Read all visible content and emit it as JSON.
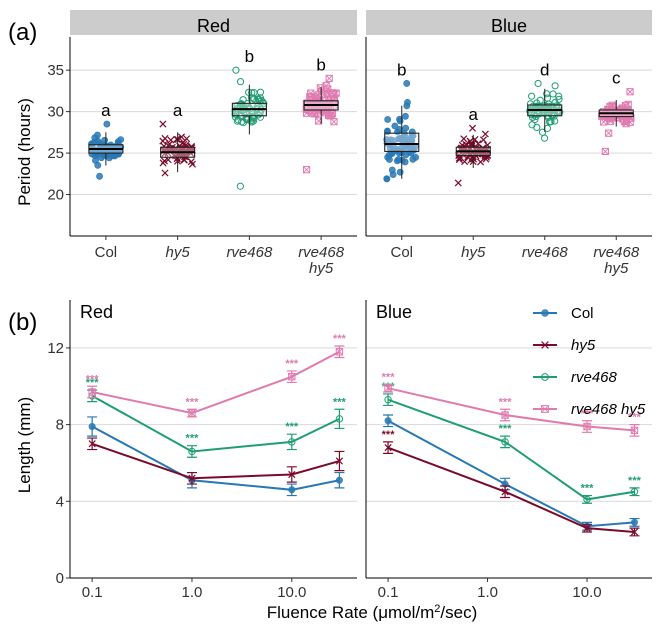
{
  "chart_data": [
    {
      "panel_label": "(a)",
      "type": "box",
      "ylabel": "Period (hours)",
      "ylim": [
        15,
        39
      ],
      "yticks": [
        20,
        25,
        30,
        35
      ],
      "grid": true,
      "categories": [
        "Col",
        "hy5",
        "rve468",
        "rve468 hy5"
      ],
      "category_lines": [
        [
          "Col"
        ],
        [
          "hy5"
        ],
        [
          "rve468"
        ],
        [
          "rve468",
          "hy5"
        ]
      ],
      "category_italic": [
        false,
        true,
        true,
        true
      ],
      "colors": {
        "Col": "#2878b5",
        "hy5": "#7b0a2a",
        "rve468": "#1f9e74",
        "rve468 hy5": "#e07aaf"
      },
      "facets": [
        {
          "strip": "Red",
          "groups": [
            {
              "category": "Col",
              "q1": 25.0,
              "median": 25.5,
              "q3": 26.0,
              "min": 22.2,
              "max": 28.5,
              "letter": "a"
            },
            {
              "category": "hy5",
              "q1": 24.5,
              "median": 25.1,
              "q3": 25.7,
              "min": 22.6,
              "max": 28.5,
              "letter": "a"
            },
            {
              "category": "rve468",
              "q1": 29.5,
              "median": 30.3,
              "q3": 31.0,
              "min": 21.0,
              "max": 35.0,
              "letter": "b"
            },
            {
              "category": "rve468 hy5",
              "q1": 30.2,
              "median": 30.8,
              "q3": 31.3,
              "min": 23.0,
              "max": 34.0,
              "letter": "b"
            }
          ]
        },
        {
          "strip": "Blue",
          "groups": [
            {
              "category": "Col",
              "q1": 25.2,
              "median": 26.1,
              "q3": 27.4,
              "min": 21.9,
              "max": 33.4,
              "letter": "b"
            },
            {
              "category": "hy5",
              "q1": 24.7,
              "median": 25.2,
              "q3": 25.7,
              "min": 21.4,
              "max": 28.0,
              "letter": "a"
            },
            {
              "category": "rve468",
              "q1": 29.5,
              "median": 30.2,
              "q3": 30.8,
              "min": 26.8,
              "max": 33.4,
              "letter": "d"
            },
            {
              "category": "rve468 hy5",
              "q1": 29.4,
              "median": 29.8,
              "q3": 30.2,
              "min": 25.2,
              "max": 32.4,
              "letter": "c"
            }
          ]
        }
      ]
    },
    {
      "panel_label": "(b)",
      "type": "line",
      "xlabel": "Fluence Rate (μmol/m",
      "xlabel_sup": "2",
      "xlabel_tail": "/sec)",
      "ylabel": "Length (mm)",
      "xscale": "log",
      "xlim": [
        0.06,
        45
      ],
      "ylim": [
        0,
        14.5
      ],
      "xticks": [
        0.1,
        1.0,
        10.0
      ],
      "xtick_labels": [
        "0.1",
        "1.0",
        "10.0"
      ],
      "yticks": [
        0,
        4,
        8,
        12
      ],
      "grid": true,
      "legend_position": "top-right",
      "series_names": [
        "Col",
        "hy5",
        "rve468",
        "rve468 hy5"
      ],
      "series_italic": [
        false,
        true,
        true,
        true
      ],
      "series_colors": [
        "#2878b5",
        "#7b0a2a",
        "#1f9e74",
        "#e07aaf"
      ],
      "series_markers": [
        "circle",
        "cross",
        "circle-open",
        "square-cross"
      ],
      "significance_label": "***",
      "facets": [
        {
          "title": "Red",
          "series": [
            {
              "name": "Col",
              "x": [
                0.1,
                1.0,
                10.0,
                30.0
              ],
              "y": [
                7.9,
                5.1,
                4.6,
                5.1
              ],
              "err": [
                0.5,
                0.4,
                0.3,
                0.4
              ],
              "sig": [
                false,
                false,
                false,
                false
              ]
            },
            {
              "name": "hy5",
              "x": [
                0.1,
                1.0,
                10.0,
                30.0
              ],
              "y": [
                7.0,
                5.2,
                5.4,
                6.1
              ],
              "err": [
                0.3,
                0.3,
                0.4,
                0.5
              ],
              "sig": [
                false,
                false,
                false,
                false
              ]
            },
            {
              "name": "rve468",
              "x": [
                0.1,
                1.0,
                10.0,
                30.0
              ],
              "y": [
                9.5,
                6.6,
                7.1,
                8.3
              ],
              "err": [
                0.3,
                0.3,
                0.4,
                0.5
              ],
              "sig": [
                true,
                true,
                true,
                true
              ]
            },
            {
              "name": "rve468 hy5",
              "x": [
                0.1,
                1.0,
                10.0,
                30.0
              ],
              "y": [
                9.7,
                8.6,
                10.5,
                11.8
              ],
              "err": [
                0.3,
                0.2,
                0.3,
                0.3
              ],
              "sig": [
                true,
                true,
                true,
                true
              ]
            }
          ]
        },
        {
          "title": "Blue",
          "series": [
            {
              "name": "Col",
              "x": [
                0.1,
                1.5,
                10.0,
                30.0
              ],
              "y": [
                8.2,
                4.9,
                2.7,
                2.9
              ],
              "err": [
                0.3,
                0.3,
                0.2,
                0.2
              ],
              "sig": [
                false,
                false,
                false,
                false
              ]
            },
            {
              "name": "hy5",
              "x": [
                0.1,
                1.5,
                10.0,
                30.0
              ],
              "y": [
                6.8,
                4.5,
                2.6,
                2.4
              ],
              "err": [
                0.3,
                0.3,
                0.2,
                0.2
              ],
              "sig": [
                true,
                false,
                false,
                false
              ]
            },
            {
              "name": "rve468",
              "x": [
                0.1,
                1.5,
                10.0,
                30.0
              ],
              "y": [
                9.3,
                7.1,
                4.1,
                4.5
              ],
              "err": [
                0.3,
                0.3,
                0.2,
                0.2
              ],
              "sig": [
                true,
                true,
                true,
                true
              ]
            },
            {
              "name": "rve468 hy5",
              "x": [
                0.1,
                1.5,
                10.0,
                30.0
              ],
              "y": [
                9.9,
                8.5,
                7.9,
                7.7
              ],
              "err": [
                0.2,
                0.3,
                0.3,
                0.3
              ],
              "sig": [
                true,
                true,
                true,
                true
              ]
            }
          ]
        }
      ]
    }
  ]
}
